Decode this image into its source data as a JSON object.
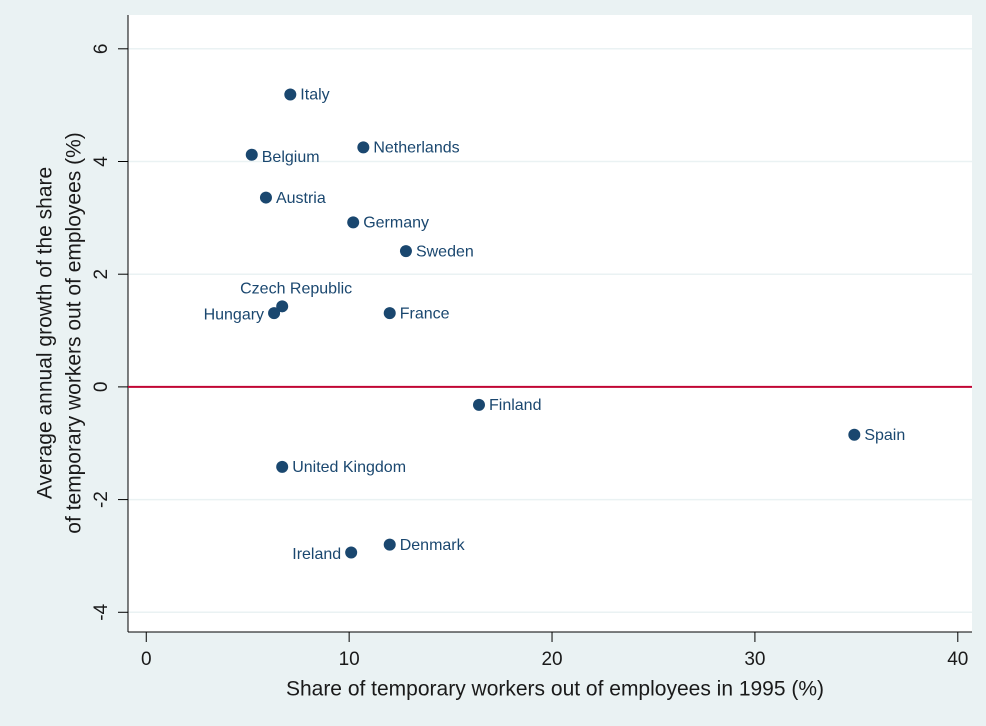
{
  "chart_data": {
    "type": "scatter",
    "xlabel": "Share of temporary workers out of employees in 1995 (%)",
    "ylabel": [
      "Average annual growth of the share",
      "of temporary workers out of employees (%)"
    ],
    "labels": [
      "Italy",
      "Belgium",
      "Netherlands",
      "Austria",
      "Germany",
      "Sweden",
      "Czech Republic",
      "Hungary",
      "France",
      "Finland",
      "Spain",
      "United Kingdom",
      "Denmark",
      "Ireland"
    ],
    "x": [
      7.1,
      5.2,
      10.7,
      5.9,
      10.2,
      12.8,
      6.7,
      6.3,
      12.0,
      16.4,
      34.9,
      6.7,
      12.0,
      10.1
    ],
    "y": [
      5.19,
      4.12,
      4.25,
      3.36,
      2.92,
      2.41,
      1.43,
      1.31,
      1.31,
      -0.32,
      -0.85,
      -1.42,
      -2.8,
      -2.94
    ],
    "color": "#1a476f",
    "yline": 0,
    "yline_color": "#c10534",
    "xlim": [
      -0.9,
      40.7
    ],
    "ylim": [
      -4.35,
      6.6
    ],
    "xticks": [
      0,
      10,
      20,
      30,
      40
    ],
    "yticks": [
      -4,
      -2,
      0,
      2,
      4,
      6
    ],
    "grid": true
  }
}
